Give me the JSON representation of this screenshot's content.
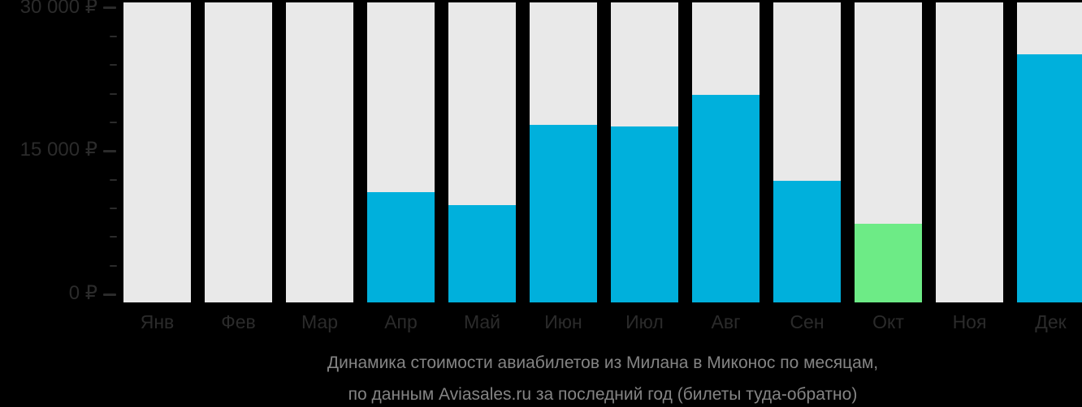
{
  "chart_data": {
    "type": "bar",
    "title": "Динамика стоимости авиабилетов из Милана в Миконос по месяцам,",
    "subtitle": "по данным Aviasales.ru за последний год (билеты туда-обратно)",
    "currency": "₽",
    "categories": [
      "Янв",
      "Фев",
      "Мар",
      "Апр",
      "Май",
      "Июн",
      "Июл",
      "Авг",
      "Сен",
      "Окт",
      "Ноя",
      "Дек"
    ],
    "values": [
      null,
      null,
      null,
      10700,
      9300,
      17700,
      17600,
      20900,
      11900,
      7400,
      null,
      25100
    ],
    "highlight_index": 9,
    "highlight_month": "Окт",
    "ylim": [
      0,
      30000
    ],
    "y_major_step": 15000,
    "y_minor_step": 3000,
    "y_tick_labels": {
      "0": "0 ₽",
      "15000": "15 000 ₽",
      "30000": "30 000 ₽"
    },
    "grid": "off",
    "legend": "none",
    "colors": {
      "background": "#000000",
      "bar": "#00b0dc",
      "bar_highlight": "#6deb86",
      "bar_track": "#e9e9e9",
      "axis_text": "#2b2b2b",
      "tick": "#2b2b2b",
      "caption_text": "#848484"
    }
  }
}
